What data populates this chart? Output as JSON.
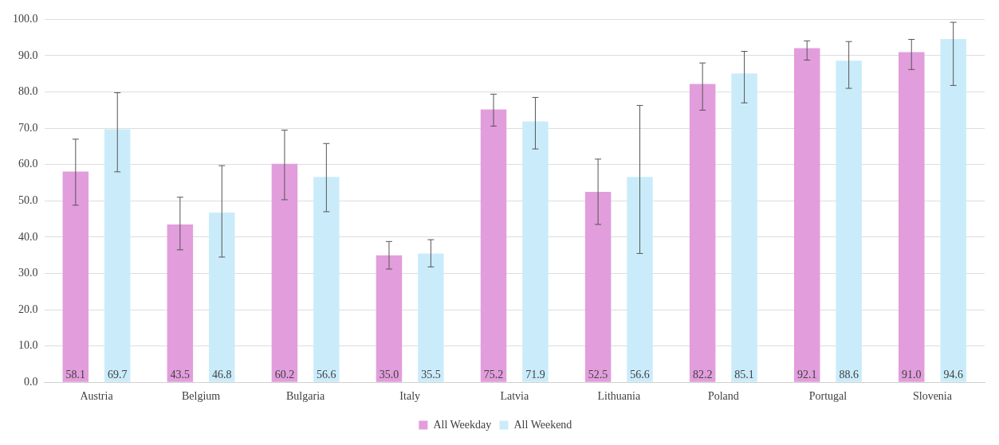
{
  "chart_data": {
    "type": "bar",
    "categories": [
      "Austria",
      "Belgium",
      "Bulgaria",
      "Italy",
      "Latvia",
      "Lithuania",
      "Poland",
      "Portugal",
      "Slovenia"
    ],
    "series": [
      {
        "name": "All Weekday",
        "color": "#e29ddc",
        "values": [
          58.1,
          43.5,
          60.2,
          35.0,
          75.2,
          52.5,
          82.2,
          92.1,
          91.0
        ],
        "value_labels": [
          "58.1",
          "43.5",
          "60.2",
          "35.0",
          "75.2",
          "52.5",
          "82.2",
          "92.1",
          "91.0"
        ],
        "errors": [
          [
            48.8,
            67.0
          ],
          [
            36.5,
            51.0
          ],
          [
            50.3,
            69.5
          ],
          [
            31.2,
            38.8
          ],
          [
            70.6,
            79.4
          ],
          [
            43.5,
            61.5
          ],
          [
            75.0,
            88.0
          ],
          [
            88.8,
            94.1
          ],
          [
            86.2,
            94.5
          ]
        ]
      },
      {
        "name": "All Weekend",
        "color": "#caecfa",
        "values": [
          69.7,
          46.8,
          56.6,
          35.5,
          71.9,
          56.6,
          85.1,
          88.6,
          94.6
        ],
        "value_labels": [
          "69.7",
          "46.8",
          "56.6",
          "35.5",
          "71.9",
          "56.6",
          "85.1",
          "88.6",
          "94.6"
        ],
        "errors": [
          [
            58.0,
            79.8
          ],
          [
            34.5,
            59.7
          ],
          [
            47.0,
            65.8
          ],
          [
            31.8,
            39.3
          ],
          [
            64.3,
            78.5
          ],
          [
            35.5,
            76.3
          ],
          [
            77.0,
            91.2
          ],
          [
            81.0,
            93.9
          ],
          [
            81.8,
            99.2
          ]
        ]
      }
    ],
    "ylim": [
      0,
      100
    ],
    "yticks": [
      {
        "value": 0,
        "label": "0.0"
      },
      {
        "value": 10,
        "label": "10.0"
      },
      {
        "value": 20,
        "label": "20.0"
      },
      {
        "value": 30,
        "label": "30.0"
      },
      {
        "value": 40,
        "label": "40.0"
      },
      {
        "value": 50,
        "label": "50.0"
      },
      {
        "value": 60,
        "label": "60.0"
      },
      {
        "value": 70,
        "label": "70.0"
      },
      {
        "value": 80,
        "label": "80.0"
      },
      {
        "value": 90,
        "label": "90.0"
      },
      {
        "value": 100,
        "label": "100.0"
      }
    ],
    "grid": "y",
    "legend": "bottom"
  }
}
